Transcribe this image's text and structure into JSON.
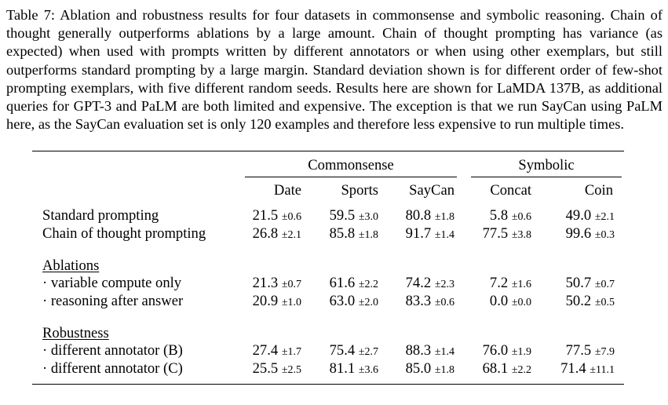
{
  "caption": "Table 7:  Ablation and robustness results for four datasets in commonsense and symbolic reasoning. Chain of thought generally outperforms ablations by a large amount. Chain of thought prompting has variance (as expected) when used with prompts written by different annotators or when using other exemplars, but still outperforms standard prompting by a large margin. Standard deviation shown is for different order of few-shot prompting exemplars, with five different random seeds. Results here are shown for LaMDA 137B, as additional queries for GPT-3 and PaLM are both limited and expensive. The exception is that we run SayCan using PaLM here, as the SayCan evaluation set is only 120 examples and therefore less expensive to run multiple times.",
  "groups": {
    "commonsense": "Commonsense",
    "symbolic": "Symbolic"
  },
  "columns": [
    "Date",
    "Sports",
    "SayCan",
    "Concat",
    "Coin"
  ],
  "sections": {
    "ablations": "Ablations",
    "robustness": "Robustness"
  },
  "rows": [
    {
      "label": "Standard prompting",
      "cells": [
        [
          "21.5",
          "±0.6"
        ],
        [
          "59.5",
          "±3.0"
        ],
        [
          "80.8",
          "±1.8"
        ],
        [
          "5.8",
          "±0.6"
        ],
        [
          "49.0",
          "±2.1"
        ]
      ]
    },
    {
      "label": "Chain of thought prompting",
      "cells": [
        [
          "26.8",
          "±2.1"
        ],
        [
          "85.8",
          "±1.8"
        ],
        [
          "91.7",
          "±1.4"
        ],
        [
          "77.5",
          "±3.8"
        ],
        [
          "99.6",
          "±0.3"
        ]
      ]
    },
    {
      "label": "· variable compute only",
      "cells": [
        [
          "21.3",
          "±0.7"
        ],
        [
          "61.6",
          "±2.2"
        ],
        [
          "74.2",
          "±2.3"
        ],
        [
          "7.2",
          "±1.6"
        ],
        [
          "50.7",
          "±0.7"
        ]
      ]
    },
    {
      "label": "· reasoning after answer",
      "cells": [
        [
          "20.9",
          "±1.0"
        ],
        [
          "63.0",
          "±2.0"
        ],
        [
          "83.3",
          "±0.6"
        ],
        [
          "0.0",
          "±0.0"
        ],
        [
          "50.2",
          "±0.5"
        ]
      ]
    },
    {
      "label": "· different annotator (B)",
      "cells": [
        [
          "27.4",
          "±1.7"
        ],
        [
          "75.4",
          "±2.7"
        ],
        [
          "88.3",
          "±1.4"
        ],
        [
          "76.0",
          "±1.9"
        ],
        [
          "77.5",
          "±7.9"
        ]
      ]
    },
    {
      "label": "· different annotator (C)",
      "cells": [
        [
          "25.5",
          "±2.5"
        ],
        [
          "81.1",
          "±3.6"
        ],
        [
          "85.0",
          "±1.8"
        ],
        [
          "68.1",
          "±2.2"
        ],
        [
          "71.4",
          "±11.1"
        ]
      ]
    }
  ]
}
